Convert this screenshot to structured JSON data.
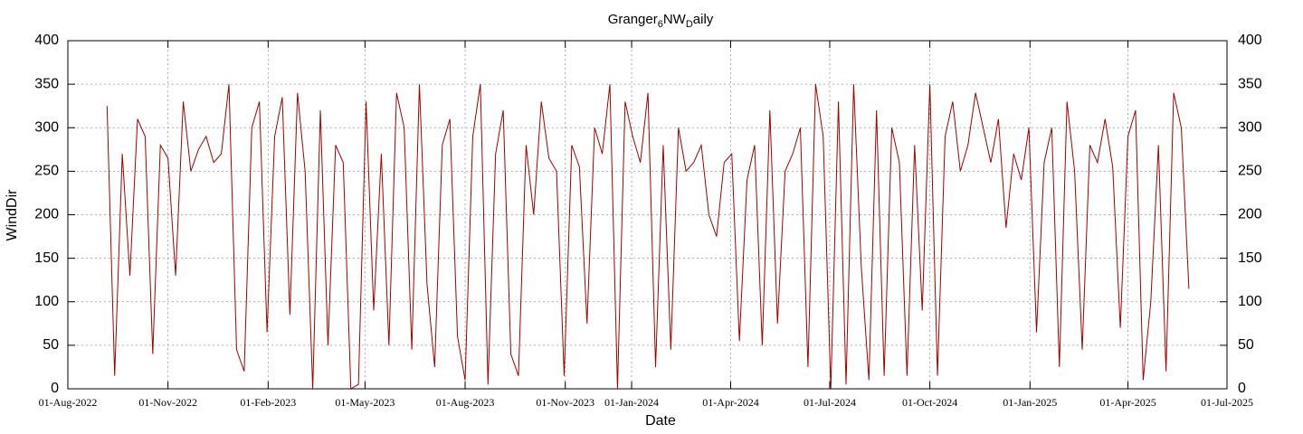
{
  "chart_data": {
    "type": "line",
    "title": [
      "Granger",
      "6",
      "NW",
      "D",
      "aily"
    ],
    "xlabel": "Date",
    "ylabel": "WindDir",
    "grid": true,
    "xlim": [
      "2022-08-01",
      "2025-07-01"
    ],
    "xticks": [
      {
        "value": "2022-08-01",
        "label": "01-Aug-2022"
      },
      {
        "value": "2022-11-01",
        "label": "01-Nov-2022"
      },
      {
        "value": "2023-02-01",
        "label": "01-Feb-2023"
      },
      {
        "value": "2023-05-01",
        "label": "01-May-2023"
      },
      {
        "value": "2023-08-01",
        "label": "01-Aug-2023"
      },
      {
        "value": "2023-11-01",
        "label": "01-Nov-2023"
      },
      {
        "value": "2024-01-01",
        "label": "01-Jan-2024"
      },
      {
        "value": "2024-04-01",
        "label": "01-Apr-2024"
      },
      {
        "value": "2024-07-01",
        "label": "01-Jul-2024"
      },
      {
        "value": "2024-10-01",
        "label": "01-Oct-2024"
      },
      {
        "value": "2025-01-01",
        "label": "01-Jan-2025"
      },
      {
        "value": "2025-04-01",
        "label": "01-Apr-2025"
      },
      {
        "value": "2025-07-01",
        "label": "01-Jul-2025"
      }
    ],
    "ylim": [
      0,
      400
    ],
    "yticks": [
      0,
      50,
      100,
      150,
      200,
      250,
      300,
      350,
      400
    ],
    "y2lim": [
      0,
      400
    ],
    "y2ticks": [
      0,
      50,
      100,
      150,
      200,
      250,
      300,
      350,
      400
    ],
    "x": [
      "2022-09-06",
      "2022-09-13",
      "2022-09-20",
      "2022-09-27",
      "2022-10-04",
      "2022-10-11",
      "2022-10-18",
      "2022-10-25",
      "2022-11-01",
      "2022-11-08",
      "2022-11-15",
      "2022-11-22",
      "2022-11-29",
      "2022-12-06",
      "2022-12-13",
      "2022-12-20",
      "2022-12-27",
      "2023-01-03",
      "2023-01-10",
      "2023-01-17",
      "2023-01-24",
      "2023-01-31",
      "2023-02-07",
      "2023-02-14",
      "2023-02-21",
      "2023-02-28",
      "2023-03-07",
      "2023-03-14",
      "2023-03-21",
      "2023-03-28",
      "2023-04-04",
      "2023-04-11",
      "2023-04-18",
      "2023-04-25",
      "2023-05-02",
      "2023-05-09",
      "2023-05-16",
      "2023-05-23",
      "2023-05-30",
      "2023-06-06",
      "2023-06-13",
      "2023-06-20",
      "2023-06-27",
      "2023-07-04",
      "2023-07-11",
      "2023-07-18",
      "2023-07-25",
      "2023-08-01",
      "2023-08-08",
      "2023-08-15",
      "2023-08-22",
      "2023-08-29",
      "2023-09-05",
      "2023-09-12",
      "2023-09-19",
      "2023-09-26",
      "2023-10-03",
      "2023-10-10",
      "2023-10-17",
      "2023-10-24",
      "2023-10-31",
      "2023-11-07",
      "2023-11-14",
      "2023-11-21",
      "2023-11-28",
      "2023-12-05",
      "2023-12-12",
      "2023-12-19",
      "2023-12-26",
      "2024-01-02",
      "2024-01-09",
      "2024-01-16",
      "2024-01-23",
      "2024-01-30",
      "2024-02-06",
      "2024-02-13",
      "2024-02-20",
      "2024-02-27",
      "2024-03-05",
      "2024-03-12",
      "2024-03-19",
      "2024-03-26",
      "2024-04-02",
      "2024-04-09",
      "2024-04-16",
      "2024-04-23",
      "2024-04-30",
      "2024-05-07",
      "2024-05-14",
      "2024-05-21",
      "2024-05-28",
      "2024-06-04",
      "2024-06-11",
      "2024-06-18",
      "2024-06-25",
      "2024-07-02",
      "2024-07-09",
      "2024-07-16",
      "2024-07-23",
      "2024-07-30",
      "2024-08-06",
      "2024-08-13",
      "2024-08-20",
      "2024-08-27",
      "2024-09-03",
      "2024-09-10",
      "2024-09-17",
      "2024-09-24",
      "2024-10-01",
      "2024-10-08",
      "2024-10-15",
      "2024-10-22",
      "2024-10-29",
      "2024-11-05",
      "2024-11-12",
      "2024-11-19",
      "2024-11-26",
      "2024-12-03",
      "2024-12-10",
      "2024-12-17",
      "2024-12-24",
      "2024-12-31",
      "2025-01-07",
      "2025-01-14",
      "2025-01-21",
      "2025-01-28",
      "2025-02-04",
      "2025-02-11",
      "2025-02-18",
      "2025-02-25",
      "2025-03-04",
      "2025-03-11",
      "2025-03-18",
      "2025-03-25",
      "2025-04-01",
      "2025-04-08",
      "2025-04-15",
      "2025-04-22",
      "2025-04-29",
      "2025-05-06",
      "2025-05-13",
      "2025-05-20",
      "2025-05-27"
    ],
    "series": [
      {
        "name": "WindDir",
        "color": "#a00000",
        "values": [
          325,
          15,
          270,
          130,
          310,
          290,
          40,
          280,
          265,
          130,
          330,
          250,
          275,
          290,
          260,
          270,
          350,
          45,
          20,
          300,
          330,
          65,
          290,
          335,
          85,
          340,
          250,
          0,
          320,
          50,
          280,
          260,
          0,
          5,
          330,
          90,
          270,
          50,
          340,
          300,
          45,
          350,
          120,
          25,
          280,
          310,
          60,
          10,
          290,
          350,
          5,
          270,
          320,
          40,
          15,
          280,
          200,
          330,
          265,
          250,
          15,
          280,
          255,
          75,
          300,
          270,
          350,
          0,
          330,
          290,
          260,
          340,
          25,
          280,
          45,
          300,
          250,
          260,
          280,
          200,
          175,
          260,
          270,
          55,
          240,
          280,
          50,
          320,
          75,
          250,
          270,
          300,
          25,
          350,
          290,
          0,
          330,
          5,
          350,
          140,
          10,
          320,
          15,
          300,
          260,
          15,
          280,
          90,
          350,
          15,
          290,
          330,
          250,
          280,
          340,
          300,
          260,
          310,
          185,
          270,
          240,
          300,
          65,
          260,
          300,
          25,
          330,
          250,
          45,
          280,
          260,
          310,
          255,
          70,
          290,
          320,
          10,
          100,
          280,
          20,
          340,
          300,
          115
        ]
      }
    ]
  }
}
